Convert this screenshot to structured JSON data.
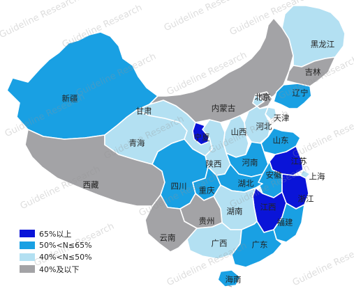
{
  "watermark": "Guideline Research",
  "legend": [
    {
      "label": "65%以上",
      "color": "#0a14d8"
    },
    {
      "label": "50%<N≤65%",
      "color": "#19a0e3"
    },
    {
      "label": "40%<N≤50%",
      "color": "#b3e0f2"
    },
    {
      "label": "40%及以下",
      "color": "#a3a3a6"
    }
  ],
  "provinces": [
    {
      "name": "新疆",
      "level": 1
    },
    {
      "name": "西藏",
      "level": 3
    },
    {
      "name": "青海",
      "level": 2
    },
    {
      "name": "甘肃",
      "level": 2
    },
    {
      "name": "内蒙古",
      "level": 3
    },
    {
      "name": "黑龙江",
      "level": 2
    },
    {
      "name": "吉林",
      "level": 3
    },
    {
      "name": "辽宁",
      "level": 1
    },
    {
      "name": "北京",
      "level": 3
    },
    {
      "name": "天津",
      "level": 2
    },
    {
      "name": "河北",
      "level": 2
    },
    {
      "name": "山西",
      "level": 2
    },
    {
      "name": "山东",
      "level": 1
    },
    {
      "name": "宁夏",
      "level": 0
    },
    {
      "name": "陕西",
      "level": 2
    },
    {
      "name": "河南",
      "level": 1
    },
    {
      "name": "江苏",
      "level": 0
    },
    {
      "name": "上海",
      "level": 2
    },
    {
      "name": "安徽",
      "level": 1
    },
    {
      "name": "湖北",
      "level": 1
    },
    {
      "name": "四川",
      "level": 1
    },
    {
      "name": "重庆",
      "level": 1
    },
    {
      "name": "浙江",
      "level": 0
    },
    {
      "name": "江西",
      "level": 0
    },
    {
      "name": "湖南",
      "level": 2
    },
    {
      "name": "贵州",
      "level": 3
    },
    {
      "name": "福建",
      "level": 1
    },
    {
      "name": "云南",
      "level": 3
    },
    {
      "name": "广西",
      "level": 2
    },
    {
      "name": "广东",
      "level": 1
    },
    {
      "name": "海南",
      "level": 1
    }
  ]
}
